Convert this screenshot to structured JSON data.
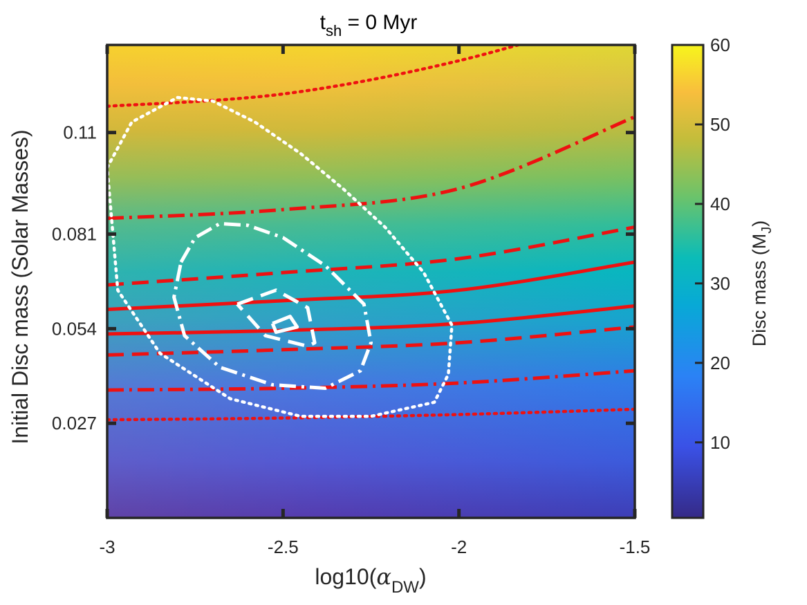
{
  "chart_data": {
    "type": "heatmap",
    "title": {
      "main": "t",
      "sub": "sh",
      "rest": " = 0 Myr"
    },
    "xlabel": {
      "main": "log10(",
      "greek": "α",
      "sub": "DW",
      "close": ")"
    },
    "ylabel": "Initial Disc mass (Solar Masses)",
    "x_ticks": [
      -3,
      -2.5,
      -2,
      -1.5
    ],
    "x_tick_labels": [
      "-3",
      "-2.5",
      "-2",
      "-1.5"
    ],
    "xlim": [
      -3,
      -1.5
    ],
    "y_ticks": [
      0.027,
      0.054,
      0.081,
      0.11
    ],
    "y_tick_labels": [
      "0.027",
      "0.054",
      "0.081",
      "0.11"
    ],
    "ylim": [
      0.0,
      0.135
    ],
    "colorbar": {
      "label": {
        "main": "Disc mass (M",
        "sub": "J",
        "close": ")"
      },
      "ticks": [
        10,
        20,
        30,
        40,
        50,
        60
      ],
      "tick_labels": [
        "10",
        "20",
        "30",
        "40",
        "50",
        "60"
      ],
      "range": [
        0.5,
        60
      ],
      "colormap": "parula"
    },
    "red_contours": [
      {
        "style": "solid",
        "x": [
          -3,
          -2.5,
          -2,
          -1.5
        ],
        "y": [
          0.0595,
          0.062,
          0.065,
          0.073
        ]
      },
      {
        "style": "solid",
        "x": [
          -3,
          -2.5,
          -2,
          -1.5
        ],
        "y": [
          0.0525,
          0.0535,
          0.0555,
          0.0605
        ]
      },
      {
        "style": "dashed",
        "x": [
          -3,
          -2.5,
          -2,
          -1.5
        ],
        "y": [
          0.0665,
          0.07,
          0.074,
          0.083
        ]
      },
      {
        "style": "dashed",
        "x": [
          -3,
          -2.5,
          -2,
          -1.5
        ],
        "y": [
          0.0465,
          0.048,
          0.05,
          0.0545
        ]
      },
      {
        "style": "dashdot",
        "x": [
          -3,
          -2.5,
          -2,
          -1.5
        ],
        "y": [
          0.0855,
          0.088,
          0.094,
          0.1145
        ]
      },
      {
        "style": "dashdot",
        "x": [
          -3,
          -2.5,
          -2,
          -1.5
        ],
        "y": [
          0.0365,
          0.037,
          0.0385,
          0.042
        ]
      },
      {
        "style": "dotted",
        "x": [
          -3,
          -2.5,
          -2,
          -1.5
        ],
        "y": [
          0.1175,
          0.121,
          0.1305,
          0.145
        ]
      },
      {
        "style": "dotted",
        "x": [
          -3,
          -2.5,
          -2,
          -1.5
        ],
        "y": [
          0.028,
          0.0285,
          0.0295,
          0.031
        ]
      }
    ],
    "white_contours": [
      {
        "style": "solid",
        "x": [
          -2.53,
          -2.48,
          -2.46,
          -2.52,
          -2.53
        ],
        "y": [
          0.0555,
          0.0575,
          0.0545,
          0.053,
          0.0555
        ]
      },
      {
        "style": "dashed",
        "x": [
          -2.63,
          -2.52,
          -2.43,
          -2.41,
          -2.43,
          -2.55,
          -2.63
        ],
        "y": [
          0.061,
          0.065,
          0.06,
          0.05,
          0.049,
          0.052,
          0.061
        ]
      },
      {
        "style": "dashdot",
        "x": [
          -2.79,
          -2.75,
          -2.68,
          -2.6,
          -2.5,
          -2.38,
          -2.27,
          -2.25,
          -2.28,
          -2.38,
          -2.53,
          -2.68,
          -2.78,
          -2.81,
          -2.79
        ],
        "y": [
          0.073,
          0.08,
          0.084,
          0.0835,
          0.08,
          0.072,
          0.061,
          0.05,
          0.042,
          0.037,
          0.038,
          0.043,
          0.052,
          0.063,
          0.073
        ]
      },
      {
        "style": "dotted",
        "x": [
          -3.0,
          -2.93,
          -2.8,
          -2.7,
          -2.58,
          -2.45,
          -2.33,
          -2.21,
          -2.1,
          -2.02,
          -2.03,
          -2.07,
          -2.25,
          -2.45,
          -2.65,
          -2.85,
          -2.97,
          -3.0
        ],
        "y": [
          0.1,
          0.113,
          0.12,
          0.119,
          0.113,
          0.104,
          0.094,
          0.083,
          0.07,
          0.055,
          0.041,
          0.033,
          0.029,
          0.029,
          0.034,
          0.047,
          0.065,
          0.1
        ]
      }
    ]
  }
}
